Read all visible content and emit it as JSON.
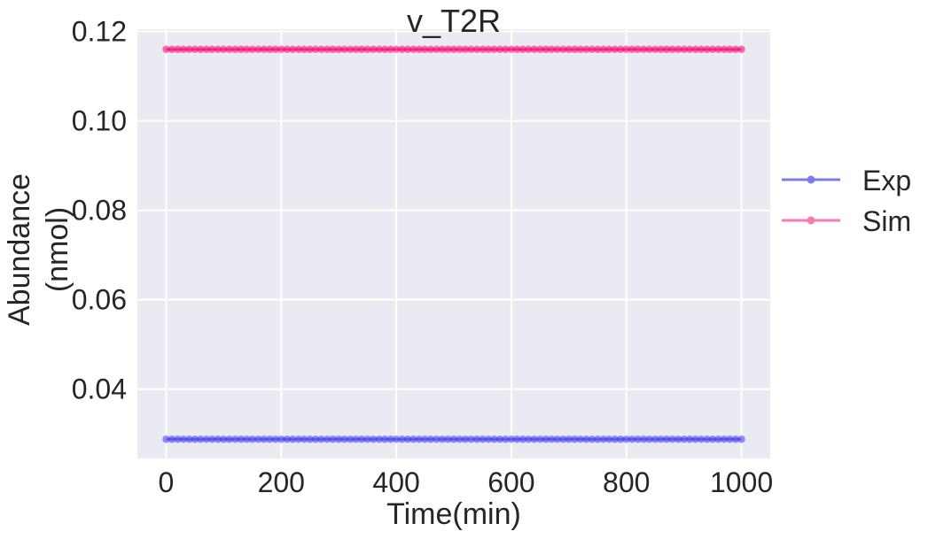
{
  "chart_data": {
    "type": "line",
    "title": "v_T2R",
    "xlabel": "Time(min)",
    "ylabel_lines": [
      "Abundance",
      "(nmol)"
    ],
    "xlim": [
      -50,
      1050
    ],
    "ylim": [
      0.0245,
      0.1205
    ],
    "xticks": [
      0,
      200,
      400,
      600,
      800,
      1000
    ],
    "yticks": [
      0.04,
      0.06,
      0.08,
      0.1,
      0.12
    ],
    "ytick_labels": [
      "0.04",
      "0.06",
      "0.08",
      "0.10",
      "0.12"
    ],
    "grid": true,
    "legend_position": "right",
    "plot_background": "#eaeaf2",
    "x": {
      "start": 0,
      "end": 1000,
      "count": 101
    },
    "series": [
      {
        "name": "Exp",
        "color": "#3b3bf2",
        "constant_value": 0.0288
      },
      {
        "name": "Sim",
        "color": "#ff0072",
        "constant_value": 0.116
      }
    ],
    "legend": [
      {
        "name": "Exp",
        "color": "#7b7bf0"
      },
      {
        "name": "Sim",
        "color": "#f77aaf"
      }
    ]
  }
}
